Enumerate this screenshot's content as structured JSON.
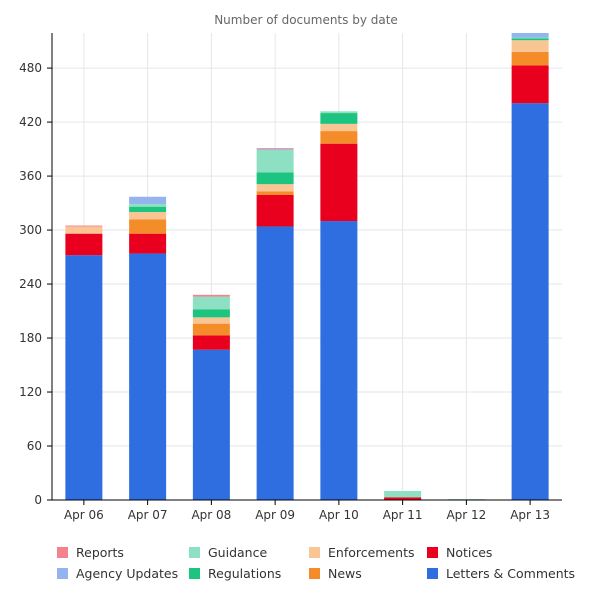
{
  "chart_data": {
    "type": "bar",
    "stacked": true,
    "title": "Number of documents by date",
    "xlabel": "",
    "ylabel": "",
    "categories": [
      "Apr 06",
      "Apr 07",
      "Apr 08",
      "Apr 09",
      "Apr 10",
      "Apr 11",
      "Apr 12",
      "Apr 13"
    ],
    "ylim": [
      0,
      519
    ],
    "yticks": [
      0,
      60,
      120,
      180,
      240,
      300,
      360,
      420,
      480
    ],
    "grid": true,
    "legend_position": "bottom",
    "series": [
      {
        "name": "Letters & Comments",
        "color": "#2e6ee0",
        "values": [
          272,
          274,
          167,
          304,
          310,
          0,
          0,
          441
        ]
      },
      {
        "name": "Notices",
        "color": "#e8001e",
        "values": [
          24,
          22,
          16,
          35,
          86,
          3,
          0,
          42
        ]
      },
      {
        "name": "News",
        "color": "#f58c2a",
        "values": [
          0,
          16,
          13,
          4,
          14,
          0,
          0,
          15
        ]
      },
      {
        "name": "Enforcements",
        "color": "#f9c593",
        "values": [
          8,
          8,
          7,
          8,
          8,
          0,
          0,
          13
        ]
      },
      {
        "name": "Regulations",
        "color": "#1cc480",
        "values": [
          0,
          6,
          9,
          13,
          12,
          0,
          0,
          2
        ]
      },
      {
        "name": "Guidance",
        "color": "#8de1c2",
        "values": [
          0,
          3,
          14,
          25,
          2,
          7,
          1,
          1
        ]
      },
      {
        "name": "Agency Updates",
        "color": "#93b4ef",
        "values": [
          0,
          8,
          0,
          1,
          0,
          0,
          0,
          5
        ]
      },
      {
        "name": "Reports",
        "color": "#f4828e",
        "values": [
          1,
          0,
          2,
          1,
          0,
          0,
          0,
          0
        ]
      }
    ],
    "legend": [
      {
        "name": "Reports",
        "color": "#f4828e"
      },
      {
        "name": "Guidance",
        "color": "#8de1c2"
      },
      {
        "name": "Enforcements",
        "color": "#f9c593"
      },
      {
        "name": "Notices",
        "color": "#e8001e"
      },
      {
        "name": "Agency Updates",
        "color": "#93b4ef"
      },
      {
        "name": "Regulations",
        "color": "#1cc480"
      },
      {
        "name": "News",
        "color": "#f58c2a"
      },
      {
        "name": "Letters & Comments",
        "color": "#2e6ee0"
      }
    ]
  }
}
